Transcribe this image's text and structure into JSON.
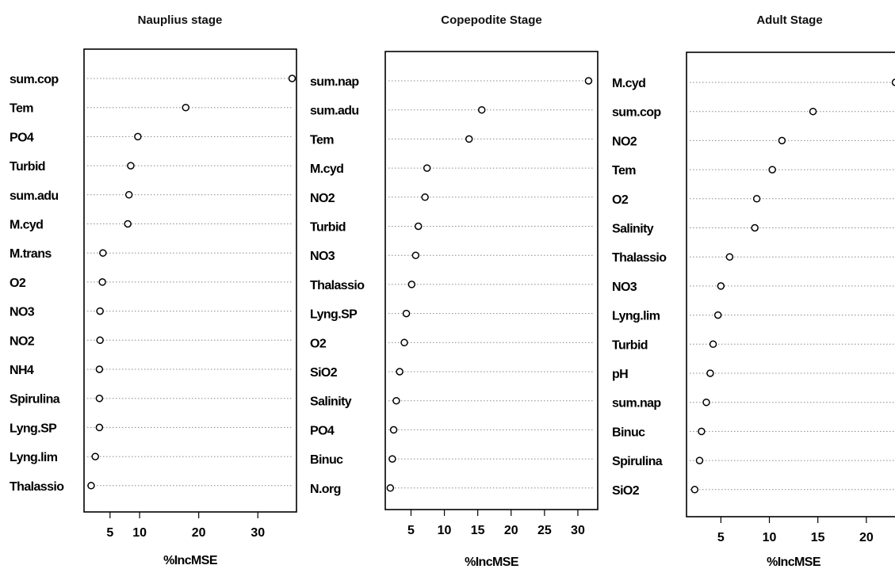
{
  "chart_data": [
    {
      "type": "scatter",
      "title": "Nauplius stage",
      "xlabel": "%IncMSE",
      "ylabel": "",
      "xlim": [
        1,
        36
      ],
      "xticks": [
        5,
        10,
        20,
        30
      ],
      "categories": [
        "sum.cop",
        "Tem",
        "PO4",
        "Turbid",
        "sum.adu",
        "M.cyd",
        "M.trans",
        "O2",
        "NO3",
        "NO2",
        "NH4",
        "Spirulina",
        "Lyng.SP",
        "Lyng.lim",
        "Thalassio"
      ],
      "values": [
        35.8,
        17.8,
        9.7,
        8.5,
        8.2,
        8.0,
        3.8,
        3.7,
        3.3,
        3.3,
        3.2,
        3.2,
        3.2,
        2.5,
        1.8
      ]
    },
    {
      "type": "scatter",
      "title": "Copepodite Stage",
      "xlabel": "%IncMSE",
      "ylabel": "",
      "xlim": [
        1.5,
        32.5
      ],
      "xticks": [
        5,
        10,
        15,
        20,
        25,
        30
      ],
      "categories": [
        "sum.nap",
        "sum.adu",
        "Tem",
        "M.cyd",
        "NO2",
        "Turbid",
        "NO3",
        "Thalassio",
        "Lyng.SP",
        "O2",
        "SiO2",
        "Salinity",
        "PO4",
        "Binuc",
        "N.org"
      ],
      "values": [
        31.6,
        15.6,
        13.7,
        7.4,
        7.1,
        6.1,
        5.7,
        5.1,
        4.3,
        4.0,
        3.3,
        2.8,
        2.4,
        2.2,
        1.9
      ]
    },
    {
      "type": "scatter",
      "title": "Adult Stage",
      "xlabel": "%IncMSE",
      "ylabel": "",
      "xlim": [
        1.7,
        23.2
      ],
      "xticks": [
        5,
        10,
        15,
        20
      ],
      "categories": [
        "M.cyd",
        "sum.cop",
        "NO2",
        "Tem",
        "O2",
        "Salinity",
        "Thalassio",
        "NO3",
        "Lyng.lim",
        "Turbid",
        "pH",
        "sum.nap",
        "Binuc",
        "Spirulina",
        "SiO2"
      ],
      "values": [
        23.0,
        14.5,
        11.3,
        10.3,
        8.7,
        8.5,
        5.9,
        5.0,
        4.7,
        4.2,
        3.9,
        3.5,
        3.0,
        2.8,
        2.3
      ]
    }
  ]
}
